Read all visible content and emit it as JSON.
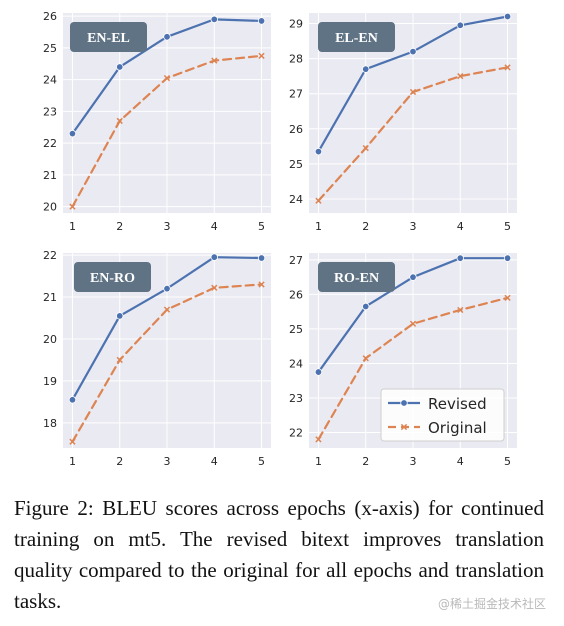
{
  "chart_data": [
    {
      "type": "line",
      "panel_label": "EN-EL",
      "x": [
        1,
        2,
        3,
        4,
        5
      ],
      "ylim": [
        19.8,
        26.1
      ],
      "yticks": [
        20,
        21,
        22,
        23,
        24,
        25,
        26
      ],
      "series": [
        {
          "name": "Revised",
          "values": [
            22.3,
            24.4,
            25.35,
            25.9,
            25.85
          ]
        },
        {
          "name": "Original",
          "values": [
            20.0,
            22.7,
            24.05,
            24.6,
            24.75
          ]
        }
      ]
    },
    {
      "type": "line",
      "panel_label": "EL-EN",
      "x": [
        1,
        2,
        3,
        4,
        5
      ],
      "ylim": [
        23.6,
        29.3
      ],
      "yticks": [
        24,
        25,
        26,
        27,
        28,
        29
      ],
      "series": [
        {
          "name": "Revised",
          "values": [
            25.35,
            27.7,
            28.2,
            28.95,
            29.2
          ]
        },
        {
          "name": "Original",
          "values": [
            23.95,
            25.45,
            27.05,
            27.5,
            27.75
          ]
        }
      ]
    },
    {
      "type": "line",
      "panel_label": "EN-RO",
      "x": [
        1,
        2,
        3,
        4,
        5
      ],
      "ylim": [
        17.4,
        22.05
      ],
      "yticks": [
        18,
        19,
        20,
        21,
        22
      ],
      "series": [
        {
          "name": "Revised",
          "values": [
            18.55,
            20.55,
            21.2,
            21.95,
            21.93
          ]
        },
        {
          "name": "Original",
          "values": [
            17.55,
            19.5,
            20.7,
            21.22,
            21.3
          ]
        }
      ]
    },
    {
      "type": "line",
      "panel_label": "RO-EN",
      "x": [
        1,
        2,
        3,
        4,
        5
      ],
      "ylim": [
        21.55,
        27.2
      ],
      "yticks": [
        22,
        23,
        24,
        25,
        26,
        27
      ],
      "series": [
        {
          "name": "Revised",
          "values": [
            23.75,
            25.65,
            26.5,
            27.05,
            27.05
          ]
        },
        {
          "name": "Original",
          "values": [
            21.8,
            24.15,
            25.15,
            25.55,
            25.9
          ]
        }
      ]
    }
  ],
  "legend": {
    "entries": [
      "Revised",
      "Original"
    ]
  },
  "colors": {
    "revised": "#4c72b0",
    "original": "#dd8452",
    "plot_background": "#eaeaf2",
    "grid": "#ffffff",
    "label_box": "#5f7384"
  },
  "caption": {
    "prefix": "Figure 2: ",
    "smallcaps_term": "BLEU",
    "text": " scores across epochs (x-axis) for continued training on mt5. The revised bitext improves translation quality compared to the original for all epochs and translation tasks."
  },
  "watermark": "@稀土掘金技术社区"
}
